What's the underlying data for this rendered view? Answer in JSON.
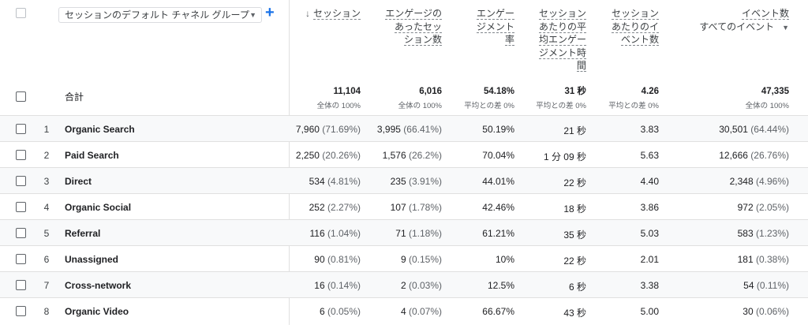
{
  "header": {
    "dimension_select": "セッションのデフォルト チャネル グループ",
    "columns": [
      {
        "key": "sessions",
        "lines": [
          "セッション"
        ],
        "sorted": true
      },
      {
        "key": "engaged",
        "lines": [
          "エンゲージの",
          "あったセッ",
          "ション数"
        ]
      },
      {
        "key": "engrate",
        "lines": [
          "エンゲー",
          "ジメント",
          "率"
        ]
      },
      {
        "key": "avgtime",
        "lines": [
          "セッション",
          "あたりの平",
          "均エンゲー",
          "ジメント時",
          "間"
        ]
      },
      {
        "key": "events_per",
        "lines": [
          "セッション",
          "あたりのイ",
          "ベント数"
        ]
      },
      {
        "key": "events",
        "lines": [
          "イベント数"
        ],
        "sub": "すべてのイベント"
      }
    ]
  },
  "totals": {
    "label": "合計",
    "sessions": {
      "value": "11,104",
      "sub": "全体の 100%"
    },
    "engaged": {
      "value": "6,016",
      "sub": "全体の 100%"
    },
    "engrate": {
      "value": "54.18%",
      "sub": "平均との差 0%"
    },
    "avgtime": {
      "value": "31 秒",
      "sub": "平均との差 0%"
    },
    "events_per": {
      "value": "4.26",
      "sub": "平均との差 0%"
    },
    "events": {
      "value": "47,335",
      "sub": "全体の 100%"
    }
  },
  "rows": [
    {
      "n": "1",
      "label": "Organic Search",
      "sessions": "7,960",
      "sessions_pct": "(71.69%)",
      "engaged": "3,995",
      "engaged_pct": "(66.41%)",
      "engrate": "50.19%",
      "avgtime": "21 秒",
      "events_per": "3.83",
      "events": "30,501",
      "events_pct": "(64.44%)"
    },
    {
      "n": "2",
      "label": "Paid Search",
      "sessions": "2,250",
      "sessions_pct": "(20.26%)",
      "engaged": "1,576",
      "engaged_pct": "(26.2%)",
      "engrate": "70.04%",
      "avgtime": "1 分 09 秒",
      "events_per": "5.63",
      "events": "12,666",
      "events_pct": "(26.76%)"
    },
    {
      "n": "3",
      "label": "Direct",
      "sessions": "534",
      "sessions_pct": "(4.81%)",
      "engaged": "235",
      "engaged_pct": "(3.91%)",
      "engrate": "44.01%",
      "avgtime": "22 秒",
      "events_per": "4.40",
      "events": "2,348",
      "events_pct": "(4.96%)"
    },
    {
      "n": "4",
      "label": "Organic Social",
      "sessions": "252",
      "sessions_pct": "(2.27%)",
      "engaged": "107",
      "engaged_pct": "(1.78%)",
      "engrate": "42.46%",
      "avgtime": "18 秒",
      "events_per": "3.86",
      "events": "972",
      "events_pct": "(2.05%)"
    },
    {
      "n": "5",
      "label": "Referral",
      "sessions": "116",
      "sessions_pct": "(1.04%)",
      "engaged": "71",
      "engaged_pct": "(1.18%)",
      "engrate": "61.21%",
      "avgtime": "35 秒",
      "events_per": "5.03",
      "events": "583",
      "events_pct": "(1.23%)"
    },
    {
      "n": "6",
      "label": "Unassigned",
      "sessions": "90",
      "sessions_pct": "(0.81%)",
      "engaged": "9",
      "engaged_pct": "(0.15%)",
      "engrate": "10%",
      "avgtime": "22 秒",
      "events_per": "2.01",
      "events": "181",
      "events_pct": "(0.38%)"
    },
    {
      "n": "7",
      "label": "Cross-network",
      "sessions": "16",
      "sessions_pct": "(0.14%)",
      "engaged": "2",
      "engaged_pct": "(0.03%)",
      "engrate": "12.5%",
      "avgtime": "6 秒",
      "events_per": "3.38",
      "events": "54",
      "events_pct": "(0.11%)"
    },
    {
      "n": "8",
      "label": "Organic Video",
      "sessions": "6",
      "sessions_pct": "(0.05%)",
      "engaged": "4",
      "engaged_pct": "(0.07%)",
      "engrate": "66.67%",
      "avgtime": "43 秒",
      "events_per": "5.00",
      "events": "30",
      "events_pct": "(0.06%)"
    }
  ]
}
